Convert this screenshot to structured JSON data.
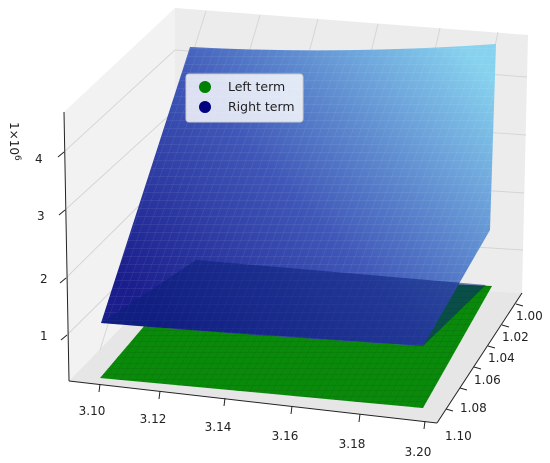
{
  "chart_data": {
    "type": "surface3d",
    "x_ticks": [
      "3.10",
      "3.12",
      "3.14",
      "3.16",
      "3.18",
      "3.20"
    ],
    "y_ticks": [
      "1.00",
      "1.02",
      "1.04",
      "1.06",
      "1.08",
      "1.10"
    ],
    "z_ticks": [
      "1",
      "2",
      "3",
      "4"
    ],
    "z_multiplier": "1×10",
    "z_multiplier_exp": "6",
    "xlim": [
      3.1,
      3.2
    ],
    "ylim": [
      1.0,
      1.1
    ],
    "zlim": [
      0,
      4.6
    ],
    "grid": true,
    "legend_position": "top-left",
    "series": [
      {
        "name": "Left term",
        "color": "#008000",
        "z_approx": "≈0.4 (flat)"
      },
      {
        "name": "Right term",
        "color": "#000080",
        "z_range_approx": [
          1.0,
          4.5
        ]
      }
    ]
  }
}
